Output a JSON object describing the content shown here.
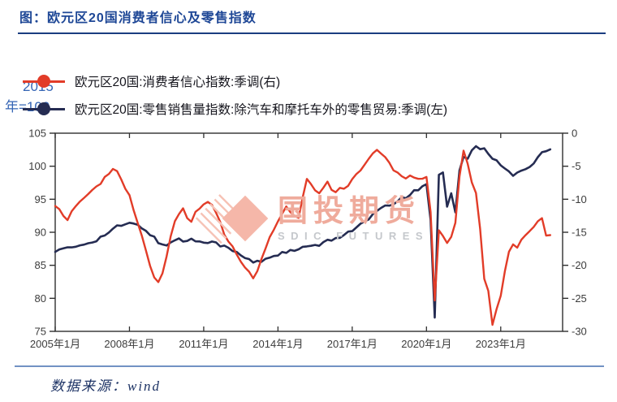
{
  "title": "图：欧元区20国消费者信心及零售指数",
  "axis_note": {
    "line1": "2015",
    "line2": "年=100"
  },
  "legend": [
    {
      "label": "欧元区20国:消费者信心指数:季调(右)",
      "color": "#e23c28"
    },
    {
      "label": "欧元区20国:零售销售量指数:除汽车和摩托车外的零售贸易:季调(左)",
      "color": "#252c52"
    }
  ],
  "watermark": {
    "cn": "国投期货",
    "en": "SDIC FUTURES"
  },
  "source": "数据来源：wind",
  "colors": {
    "title_blue": "#1e4796",
    "confidence_red": "#e23c28",
    "retail_navy": "#252c52",
    "axis": "#2f2f2f",
    "axis_text": "#3c3c3c"
  },
  "chart_data": {
    "type": "line",
    "x_start": 2005.0,
    "x_step": 0.166667,
    "x_axis_end": 2025.5,
    "x_ticks": [
      {
        "t": 2005,
        "label": "2005年1月"
      },
      {
        "t": 2008,
        "label": "2008年1月"
      },
      {
        "t": 2011,
        "label": "2011年1月"
      },
      {
        "t": 2014,
        "label": "2014年1月"
      },
      {
        "t": 2017,
        "label": "2017年1月"
      },
      {
        "t": 2020,
        "label": "2020年1月"
      },
      {
        "t": 2023,
        "label": "2023年1月"
      }
    ],
    "left_axis": {
      "min": 75,
      "max": 105,
      "ticks": [
        105,
        100,
        95,
        90,
        85,
        80,
        75
      ]
    },
    "right_axis": {
      "min": -30,
      "max": 0,
      "ticks": [
        0,
        -5,
        -10,
        -15,
        -20,
        -25,
        -30
      ]
    },
    "grid": false,
    "legend_position": "top-left",
    "series": [
      {
        "name": "欧元区20国:零售销售量指数:除汽车和摩托车外的零售贸易:季调(左)",
        "axis": "left",
        "color": "#252c52",
        "width": 2.6,
        "values": [
          87.3,
          87.5,
          87.4,
          87.6,
          87.5,
          87.8,
          88.0,
          88.2,
          88.5,
          88.6,
          88.9,
          89.2,
          89.6,
          90.0,
          90.4,
          90.8,
          91.0,
          91.2,
          91.3,
          91.2,
          91.0,
          90.7,
          90.3,
          89.8,
          89.1,
          88.4,
          88.1,
          88.2,
          88.5,
          88.8,
          88.9,
          88.7,
          88.8,
          88.9,
          88.7,
          88.8,
          88.7,
          88.6,
          88.5,
          88.4,
          88.1,
          87.8,
          87.5,
          87.2,
          86.9,
          86.5,
          86.1,
          85.8,
          85.5,
          85.5,
          85.7,
          86.0,
          86.2,
          86.5,
          86.7,
          86.8,
          87.0,
          87.1,
          87.2,
          87.4,
          87.6,
          87.7,
          87.9,
          88.0,
          88.1,
          88.3,
          88.6,
          88.8,
          89.1,
          89.4,
          89.7,
          90.0,
          90.4,
          90.7,
          91.1,
          91.5,
          92.0,
          92.6,
          93.2,
          93.5,
          93.8,
          94.1,
          94.4,
          94.7,
          95.1,
          95.4,
          95.7,
          96.1,
          96.5,
          96.9,
          97.3,
          92.0,
          77.2,
          98.5,
          99.3,
          94.0,
          96.0,
          93.2,
          99.5,
          101.3,
          101.0,
          102.6,
          103.0,
          102.5,
          102.6,
          101.9,
          101.2,
          100.7,
          100.2,
          99.6,
          99.1,
          98.7,
          99.1,
          99.3,
          99.5,
          99.9,
          100.5,
          101.3,
          102.0,
          102.5,
          102.6
        ]
      },
      {
        "name": "欧元区20国:消费者信心指数:季调(右)",
        "axis": "right",
        "color": "#e23c28",
        "width": 2.4,
        "values": [
          -10.8,
          -11.6,
          -12.6,
          -12.9,
          -12.0,
          -11.2,
          -10.3,
          -9.9,
          -9.2,
          -8.6,
          -8.2,
          -7.6,
          -6.8,
          -6.0,
          -5.4,
          -5.7,
          -6.9,
          -8.2,
          -9.6,
          -11.5,
          -13.8,
          -15.5,
          -17.8,
          -20.3,
          -22.0,
          -22.6,
          -21.3,
          -18.5,
          -15.8,
          -13.6,
          -12.2,
          -11.4,
          -12.6,
          -13.3,
          -12.0,
          -11.2,
          -10.8,
          -10.6,
          -11.0,
          -12.0,
          -13.6,
          -15.4,
          -16.6,
          -17.4,
          -18.3,
          -19.3,
          -20.3,
          -21.2,
          -21.7,
          -20.8,
          -19.3,
          -17.3,
          -15.8,
          -14.6,
          -13.2,
          -12.1,
          -11.3,
          -11.7,
          -12.4,
          -12.7,
          -9.5,
          -6.8,
          -7.8,
          -8.8,
          -8.9,
          -8.3,
          -7.4,
          -8.7,
          -8.9,
          -8.2,
          -8.6,
          -7.9,
          -7.0,
          -6.3,
          -5.5,
          -4.7,
          -3.9,
          -3.1,
          -2.5,
          -3.0,
          -3.7,
          -4.6,
          -5.4,
          -5.9,
          -6.3,
          -6.7,
          -6.4,
          -6.6,
          -6.9,
          -6.7,
          -6.6,
          -11.8,
          -25.3,
          -14.8,
          -15.4,
          -16.8,
          -15.6,
          -13.8,
          -6.5,
          -2.8,
          -4.8,
          -7.2,
          -9.0,
          -14.5,
          -21.8,
          -23.8,
          -28.8,
          -26.8,
          -24.8,
          -20.8,
          -18.0,
          -16.8,
          -17.6,
          -16.4,
          -15.4,
          -14.6,
          -14.0,
          -13.2,
          -12.8,
          -15.6,
          -15.2
        ]
      }
    ]
  }
}
